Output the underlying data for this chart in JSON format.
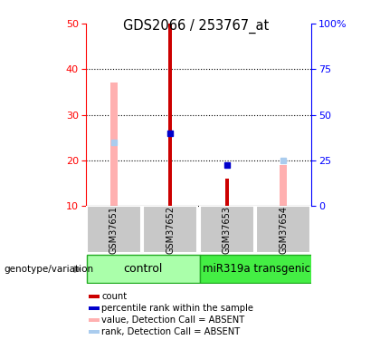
{
  "title": "GDS2066 / 253767_at",
  "samples": [
    "GSM37651",
    "GSM37652",
    "GSM37653",
    "GSM37654"
  ],
  "ylim": [
    10,
    50
  ],
  "yticks_left": [
    10,
    20,
    30,
    40,
    50
  ],
  "red_bars": [
    null,
    50,
    16,
    null
  ],
  "blue_squares": [
    null,
    26,
    19,
    null
  ],
  "pink_bars": [
    37,
    null,
    null,
    19
  ],
  "light_blue_squares": [
    24,
    null,
    null,
    20
  ],
  "red_color": "#CC0000",
  "blue_color": "#0000CC",
  "pink_color": "#FFB0B0",
  "light_blue_color": "#AACCEE",
  "grid_lines": [
    20,
    30,
    40
  ],
  "right_tick_labels": [
    "0",
    "25",
    "50",
    "75",
    "100%"
  ],
  "ctrl_color": "#AAFFAA",
  "mir_color": "#44EE44",
  "group_border_color": "#22AA22",
  "sample_bg_color": "#C8C8C8",
  "legend_items": [
    {
      "label": "count",
      "color": "#CC0000"
    },
    {
      "label": "percentile rank within the sample",
      "color": "#0000CC"
    },
    {
      "label": "value, Detection Call = ABSENT",
      "color": "#FFB0B0"
    },
    {
      "label": "rank, Detection Call = ABSENT",
      "color": "#AACCEE"
    }
  ]
}
